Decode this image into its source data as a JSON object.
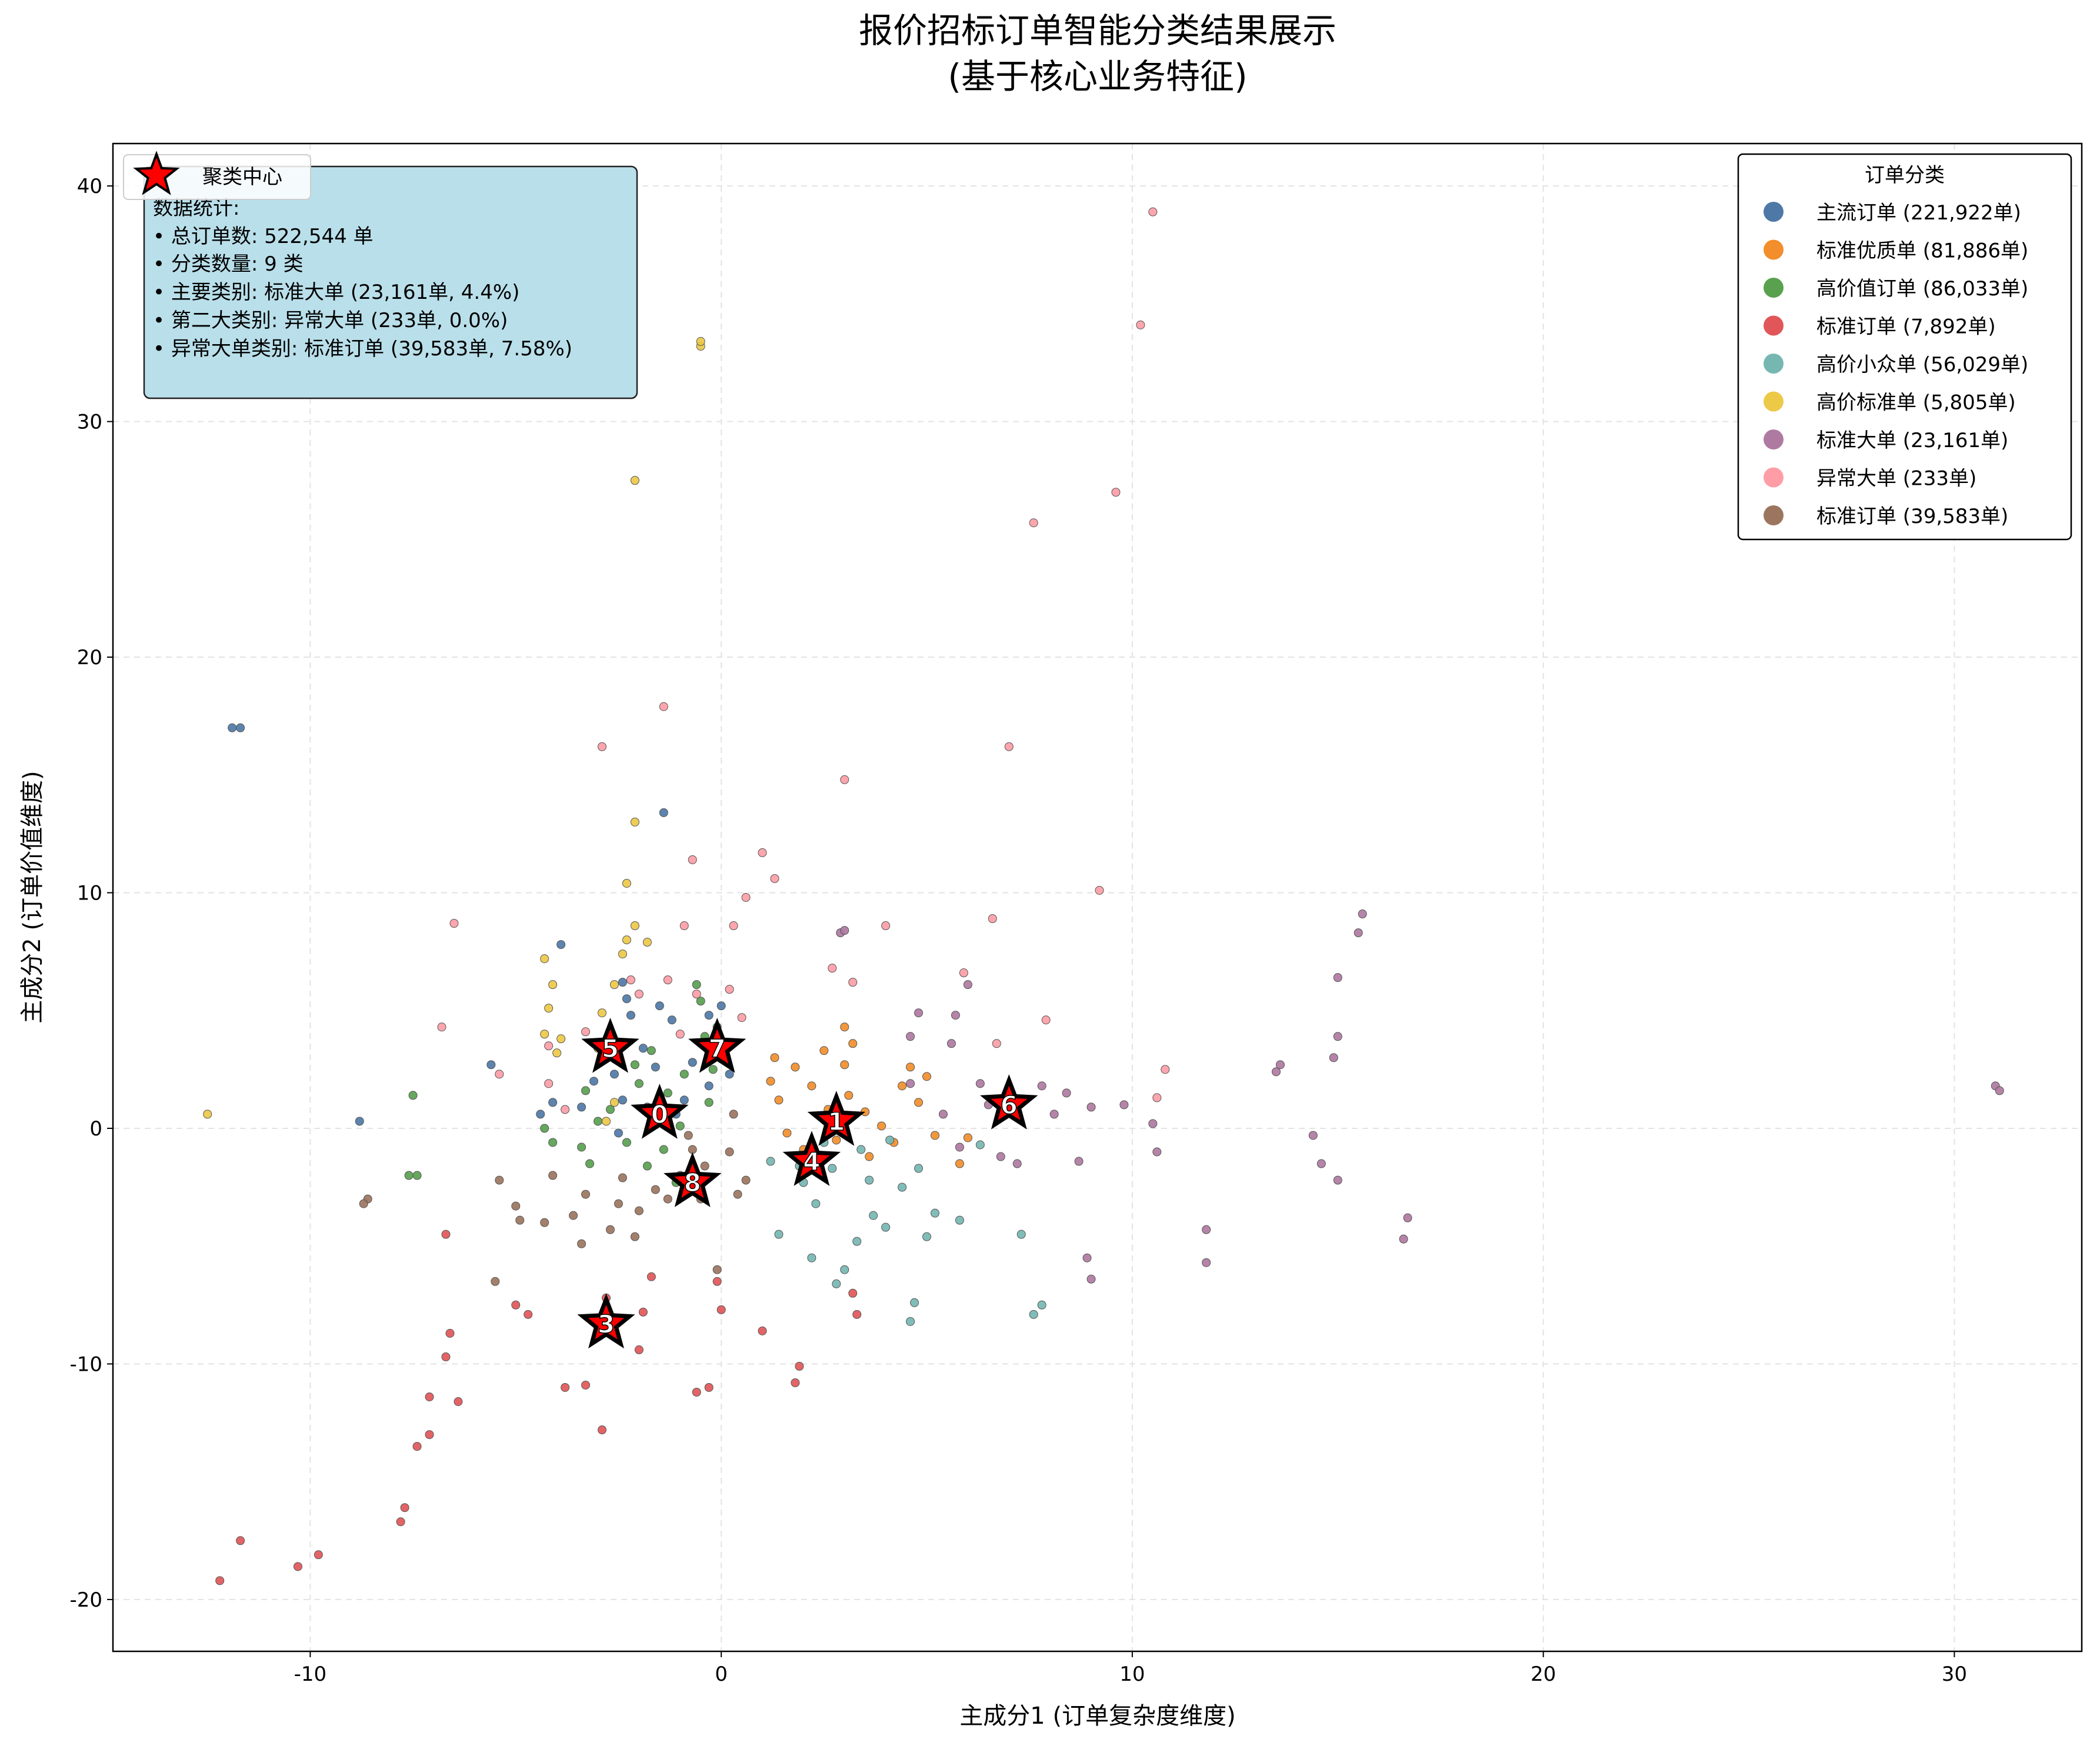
{
  "chart_data": {
    "type": "scatter",
    "title": [
      "报价招标订单智能分类结果展示",
      "(基于核心业务特征)"
    ],
    "xlabel": "主成分1 (订单复杂度维度)",
    "ylabel": "主成分2 (订单价值维度)",
    "xlim": [
      -14.8,
      33.1
    ],
    "ylim": [
      -22.2,
      41.8
    ],
    "xticks": [
      -10,
      0,
      10,
      20,
      30
    ],
    "yticks": [
      -20,
      -10,
      0,
      10,
      20,
      30,
      40
    ],
    "xtick_labels": [
      "-10",
      "0",
      "10",
      "20",
      "30"
    ],
    "ytick_labels": [
      "-20",
      "-10",
      "0",
      "10",
      "20",
      "30",
      "40"
    ],
    "grid": true,
    "legend_title": "订单分类",
    "legend_placement": "top-right",
    "centers_legend_label": "聚类中心",
    "series": [
      {
        "name": "主流订单 (221,922单)",
        "color": "#4e79a7",
        "points": [
          [
            -11.9,
            17.0
          ],
          [
            -11.7,
            17.0
          ],
          [
            -1.4,
            13.4
          ],
          [
            -3.9,
            7.8
          ],
          [
            -2.4,
            6.2
          ],
          [
            -2.3,
            5.5
          ],
          [
            -2.2,
            4.8
          ],
          [
            -1.5,
            5.2
          ],
          [
            -1.2,
            4.6
          ],
          [
            -0.3,
            4.8
          ],
          [
            0,
            5.2
          ],
          [
            -0.1,
            3.6
          ],
          [
            -1.6,
            2.6
          ],
          [
            -0.7,
            2.8
          ],
          [
            -0.2,
            3.2
          ],
          [
            -2.6,
            2.3
          ],
          [
            -3.1,
            2.0
          ],
          [
            -4.4,
            0.6
          ],
          [
            -4.1,
            1.1
          ],
          [
            -3.4,
            0.9
          ],
          [
            -5.6,
            2.7
          ],
          [
            -8.8,
            0.3
          ],
          [
            -2.4,
            1.2
          ],
          [
            -1.8,
            0.9
          ],
          [
            -0.9,
            1.2
          ],
          [
            -0.3,
            1.8
          ],
          [
            -1.1,
            0.6
          ],
          [
            0.2,
            2.3
          ],
          [
            -2.5,
            -0.2
          ],
          [
            -1.9,
            3.4
          ]
        ]
      },
      {
        "name": "标准优质单 (81,886单)",
        "color": "#f28e2b",
        "points": [
          [
            1.2,
            2.0
          ],
          [
            1.4,
            1.2
          ],
          [
            1.8,
            2.6
          ],
          [
            2.2,
            1.8
          ],
          [
            2.5,
            3.3
          ],
          [
            3.0,
            2.7
          ],
          [
            3.2,
            3.6
          ],
          [
            3.1,
            1.4
          ],
          [
            3.5,
            0.7
          ],
          [
            2.8,
            -0.5
          ],
          [
            3.9,
            0.1
          ],
          [
            4.2,
            -0.6
          ],
          [
            4.8,
            1.1
          ],
          [
            5.2,
            -0.3
          ],
          [
            5.0,
            2.2
          ],
          [
            6.0,
            -0.4
          ],
          [
            5.8,
            -1.5
          ],
          [
            2.0,
            -0.9
          ],
          [
            4.4,
            1.8
          ],
          [
            1.6,
            -0.2
          ],
          [
            3.6,
            -1.2
          ],
          [
            2.6,
            0.8
          ],
          [
            3.0,
            4.3
          ],
          [
            1.3,
            3.0
          ],
          [
            4.6,
            2.6
          ]
        ]
      },
      {
        "name": "高价值订单 (86,033单)",
        "color": "#59a14f",
        "points": [
          [
            -7.5,
            1.4
          ],
          [
            -7.6,
            -2.0
          ],
          [
            -7.4,
            -2.0
          ],
          [
            -4.3,
            0.0
          ],
          [
            -4.1,
            -0.6
          ],
          [
            -3.4,
            -0.8
          ],
          [
            -3.2,
            -1.5
          ],
          [
            -3.3,
            1.6
          ],
          [
            -2.7,
            0.8
          ],
          [
            -2.1,
            2.7
          ],
          [
            -1.7,
            3.3
          ],
          [
            -1.6,
            0.4
          ],
          [
            -1.8,
            -1.6
          ],
          [
            -1.3,
            1.5
          ],
          [
            -0.9,
            2.3
          ],
          [
            -0.4,
            3.9
          ],
          [
            -0.5,
            5.4
          ],
          [
            -0.2,
            2.5
          ],
          [
            -2.0,
            1.9
          ],
          [
            -1.0,
            0.1
          ],
          [
            -0.6,
            6.1
          ],
          [
            -0.3,
            1.1
          ],
          [
            -1.1,
            -2.3
          ],
          [
            -2.3,
            -0.6
          ],
          [
            -3.0,
            0.3
          ],
          [
            -0.1,
            4.3
          ],
          [
            -1.4,
            -0.9
          ]
        ]
      },
      {
        "name": "标准订单 (7,892单)",
        "color": "#e15759",
        "points": [
          [
            -12.2,
            -19.2
          ],
          [
            -11.7,
            -17.5
          ],
          [
            -10.3,
            -18.6
          ],
          [
            -9.8,
            -18.1
          ],
          [
            -7.8,
            -16.7
          ],
          [
            -7.7,
            -16.1
          ],
          [
            -7.4,
            -13.5
          ],
          [
            -7.1,
            -13.0
          ],
          [
            -7.1,
            -11.4
          ],
          [
            -6.7,
            -9.7
          ],
          [
            -6.6,
            -8.7
          ],
          [
            -6.4,
            -11.6
          ],
          [
            -6.7,
            -4.5
          ],
          [
            -5.0,
            -7.5
          ],
          [
            -4.7,
            -7.9
          ],
          [
            -3.8,
            -11.0
          ],
          [
            -3.3,
            -10.9
          ],
          [
            -2.9,
            -12.8
          ],
          [
            -2.7,
            -8.6
          ],
          [
            -2.8,
            -7.2
          ],
          [
            -1.9,
            -7.8
          ],
          [
            -1.7,
            -6.3
          ],
          [
            -0.6,
            -11.2
          ],
          [
            -0.3,
            -11.0
          ],
          [
            0.0,
            -7.7
          ],
          [
            -0.1,
            -6.5
          ],
          [
            1.8,
            -10.8
          ],
          [
            1.9,
            -10.1
          ],
          [
            3.3,
            -7.9
          ],
          [
            3.2,
            -7.0
          ],
          [
            1.0,
            -8.6
          ],
          [
            -2.0,
            -9.4
          ]
        ]
      },
      {
        "name": "高价小众单 (56,029单)",
        "color": "#76b7b2",
        "points": [
          [
            1.2,
            -1.4
          ],
          [
            1.4,
            -4.5
          ],
          [
            2.0,
            -2.3
          ],
          [
            2.2,
            -5.5
          ],
          [
            2.5,
            -0.6
          ],
          [
            2.7,
            -1.7
          ],
          [
            2.8,
            -6.6
          ],
          [
            3.0,
            -6.0
          ],
          [
            3.3,
            -4.8
          ],
          [
            3.6,
            -2.2
          ],
          [
            3.7,
            -3.7
          ],
          [
            4.0,
            -4.2
          ],
          [
            4.4,
            -2.5
          ],
          [
            4.6,
            -8.2
          ],
          [
            4.7,
            -7.4
          ],
          [
            4.8,
            -1.7
          ],
          [
            5.0,
            -4.6
          ],
          [
            5.2,
            -3.6
          ],
          [
            5.8,
            -3.9
          ],
          [
            6.3,
            -0.7
          ],
          [
            7.3,
            -4.5
          ],
          [
            7.6,
            -7.9
          ],
          [
            7.8,
            -7.5
          ],
          [
            3.4,
            -0.9
          ],
          [
            1.9,
            -1.6
          ],
          [
            2.3,
            -3.2
          ],
          [
            4.1,
            -0.5
          ]
        ]
      },
      {
        "name": "高价标准单 (5,805单)",
        "color": "#edc948",
        "points": [
          [
            -12.5,
            0.6
          ],
          [
            -4.3,
            4.0
          ],
          [
            -4.2,
            5.1
          ],
          [
            -4.1,
            6.1
          ],
          [
            -4.3,
            7.2
          ],
          [
            -4.0,
            3.2
          ],
          [
            -3.9,
            3.8
          ],
          [
            -3.0,
            3.4
          ],
          [
            -2.9,
            4.9
          ],
          [
            -2.4,
            7.4
          ],
          [
            -2.3,
            8.0
          ],
          [
            -2.3,
            10.4
          ],
          [
            -2.1,
            8.6
          ],
          [
            -2.1,
            13.0
          ],
          [
            -2.1,
            27.5
          ],
          [
            -0.5,
            33.2
          ],
          [
            -0.5,
            33.4
          ],
          [
            -2.8,
            0.3
          ],
          [
            -2.6,
            1.1
          ],
          [
            -2.6,
            6.1
          ],
          [
            -1.8,
            7.9
          ]
        ]
      },
      {
        "name": "标准大单 (23,161单)",
        "color": "#af7aa1",
        "points": [
          [
            2.9,
            8.3
          ],
          [
            3.0,
            8.4
          ],
          [
            4.6,
            3.9
          ],
          [
            4.8,
            4.9
          ],
          [
            4.6,
            1.9
          ],
          [
            5.4,
            0.6
          ],
          [
            5.7,
            4.8
          ],
          [
            5.6,
            3.6
          ],
          [
            6.0,
            6.1
          ],
          [
            5.8,
            -0.8
          ],
          [
            6.3,
            1.9
          ],
          [
            6.5,
            1.0
          ],
          [
            6.8,
            -1.2
          ],
          [
            7.2,
            0.5
          ],
          [
            7.2,
            -1.5
          ],
          [
            7.8,
            1.8
          ],
          [
            8.1,
            0.6
          ],
          [
            8.4,
            1.5
          ],
          [
            8.7,
            -1.4
          ],
          [
            9.0,
            0.9
          ],
          [
            8.9,
            -5.5
          ],
          [
            9.0,
            -6.4
          ],
          [
            9.8,
            1.0
          ],
          [
            10.5,
            0.2
          ],
          [
            10.6,
            -1.0
          ],
          [
            11.8,
            -4.3
          ],
          [
            11.8,
            -5.7
          ],
          [
            13.5,
            2.4
          ],
          [
            13.6,
            2.7
          ],
          [
            14.4,
            -0.3
          ],
          [
            14.6,
            -1.5
          ],
          [
            15.0,
            -2.2
          ],
          [
            14.9,
            3.0
          ],
          [
            15.0,
            3.9
          ],
          [
            15.0,
            6.4
          ],
          [
            15.5,
            8.3
          ],
          [
            15.6,
            9.1
          ],
          [
            16.6,
            -4.7
          ],
          [
            16.7,
            -3.8
          ],
          [
            31.0,
            1.8
          ],
          [
            31.1,
            1.6
          ]
        ]
      },
      {
        "name": "异常大单 (233单)",
        "color": "#ff9da7",
        "points": [
          [
            10.5,
            38.9
          ],
          [
            10.2,
            34.1
          ],
          [
            9.6,
            27.0
          ],
          [
            7.6,
            25.7
          ],
          [
            -1.4,
            17.9
          ],
          [
            -2.9,
            16.2
          ],
          [
            7.0,
            16.2
          ],
          [
            3.0,
            14.8
          ],
          [
            1.0,
            11.7
          ],
          [
            -0.7,
            11.4
          ],
          [
            1.3,
            10.6
          ],
          [
            9.2,
            10.1
          ],
          [
            0.6,
            9.8
          ],
          [
            0.3,
            8.6
          ],
          [
            -6.5,
            8.7
          ],
          [
            -0.9,
            8.6
          ],
          [
            4.0,
            8.6
          ],
          [
            6.6,
            8.9
          ],
          [
            -2.2,
            6.3
          ],
          [
            -2.0,
            5.7
          ],
          [
            -0.6,
            5.7
          ],
          [
            -1.3,
            6.3
          ],
          [
            3.2,
            6.2
          ],
          [
            5.9,
            6.6
          ],
          [
            0.2,
            5.9
          ],
          [
            -4.2,
            3.5
          ],
          [
            -4.2,
            1.9
          ],
          [
            -5.4,
            2.3
          ],
          [
            -6.8,
            4.3
          ],
          [
            -3.8,
            0.8
          ],
          [
            -3.3,
            4.1
          ],
          [
            -1.0,
            4.0
          ],
          [
            0.5,
            4.7
          ],
          [
            2.7,
            6.8
          ],
          [
            7.9,
            4.6
          ],
          [
            6.7,
            3.6
          ],
          [
            10.6,
            1.3
          ],
          [
            10.8,
            2.5
          ]
        ]
      },
      {
        "name": "标准订单 (39,583单)",
        "color": "#9c755f",
        "points": [
          [
            -8.6,
            -3.0
          ],
          [
            -8.7,
            -3.2
          ],
          [
            -5.5,
            -6.5
          ],
          [
            -5.4,
            -2.2
          ],
          [
            -5.0,
            -3.3
          ],
          [
            -4.9,
            -3.9
          ],
          [
            -4.1,
            -2.0
          ],
          [
            -4.3,
            -4.0
          ],
          [
            -3.6,
            -3.7
          ],
          [
            -3.3,
            -2.8
          ],
          [
            -2.5,
            -3.2
          ],
          [
            -2.0,
            -3.5
          ],
          [
            -2.1,
            -4.6
          ],
          [
            -2.7,
            -4.3
          ],
          [
            -3.4,
            -4.9
          ],
          [
            -1.3,
            -3.0
          ],
          [
            -1.0,
            -2.0
          ],
          [
            -0.7,
            -0.9
          ],
          [
            -0.5,
            -3.0
          ],
          [
            0.2,
            -1.0
          ],
          [
            0.4,
            -2.8
          ],
          [
            0.6,
            -2.2
          ],
          [
            0.3,
            0.6
          ],
          [
            -0.4,
            -1.6
          ],
          [
            -0.8,
            -0.3
          ],
          [
            -0.1,
            -6.0
          ],
          [
            -1.6,
            -2.6
          ],
          [
            -2.4,
            -2.1
          ]
        ]
      }
    ],
    "centers": [
      {
        "label": "0",
        "x": -1.5,
        "y": 0.6
      },
      {
        "label": "1",
        "x": 2.8,
        "y": 0.3
      },
      {
        "label": "3",
        "x": -2.8,
        "y": -8.3
      },
      {
        "label": "4",
        "x": 2.2,
        "y": -1.4
      },
      {
        "label": "5",
        "x": -2.7,
        "y": 3.4
      },
      {
        "label": "6",
        "x": 7.0,
        "y": 1.0
      },
      {
        "label": "7",
        "x": -0.1,
        "y": 3.4
      },
      {
        "label": "8",
        "x": -0.7,
        "y": -2.3
      }
    ],
    "stats_box": {
      "lines": [
        "数据统计:",
        "• 总订单数: 522,544 单",
        "• 分类数量: 9 类",
        "• 主要类别: 标准大单 (23,161单, 4.4%)",
        "• 第二大类别: 异常大单 (233单, 0.0%)",
        "• 异常大单类别: 标准订单 (39,583单, 7.58%)"
      ],
      "background": "#b9dfea"
    }
  }
}
